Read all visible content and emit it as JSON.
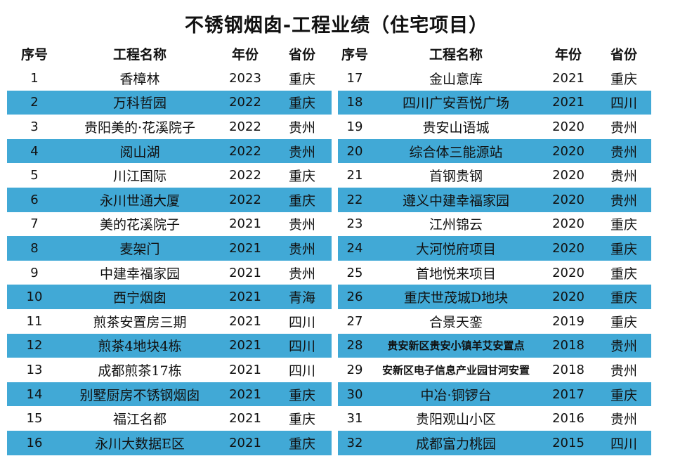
{
  "title": "不锈钢烟囱-工程业绩（住宅项目）",
  "headers": [
    "序号",
    "工程名称",
    "年份",
    "省份"
  ],
  "left_rows": [
    {
      "no": "1",
      "name": "香樟林",
      "year": "2023",
      "prov": "重庆"
    },
    {
      "no": "2",
      "name": "万科哲园",
      "year": "2022",
      "prov": "重庆"
    },
    {
      "no": "3",
      "name": "贵阳美的·花溪院子",
      "year": "2022",
      "prov": "贵州"
    },
    {
      "no": "4",
      "name": "阅山湖",
      "year": "2022",
      "prov": "贵州"
    },
    {
      "no": "5",
      "name": "川江国际",
      "year": "2022",
      "prov": "重庆"
    },
    {
      "no": "6",
      "name": "永川世通大厦",
      "year": "2022",
      "prov": "重庆"
    },
    {
      "no": "7",
      "name": "美的花溪院子",
      "year": "2021",
      "prov": "贵州"
    },
    {
      "no": "8",
      "name": "麦架门",
      "year": "2021",
      "prov": "贵州"
    },
    {
      "no": "9",
      "name": "中建幸福家园",
      "year": "2021",
      "prov": "贵州"
    },
    {
      "no": "10",
      "name": "西宁烟囱",
      "year": "2021",
      "prov": "青海"
    },
    {
      "no": "11",
      "name": "煎茶安置房三期",
      "year": "2021",
      "prov": "四川"
    },
    {
      "no": "12",
      "name": "煎茶4地块4栋",
      "year": "2021",
      "prov": "四川"
    },
    {
      "no": "13",
      "name": "成都煎茶17栋",
      "year": "2021",
      "prov": "四川"
    },
    {
      "no": "14",
      "name": "别墅厨房不锈钢烟囱",
      "year": "2021",
      "prov": "重庆"
    },
    {
      "no": "15",
      "name": "福江名都",
      "year": "2021",
      "prov": "重庆"
    },
    {
      "no": "16",
      "name": "永川大数据E区",
      "year": "2021",
      "prov": "重庆"
    }
  ],
  "right_rows": [
    {
      "no": "17",
      "name": "金山意库",
      "year": "2021",
      "prov": "重庆"
    },
    {
      "no": "18",
      "name": "四川广安吾悦广场",
      "year": "2021",
      "prov": "四川"
    },
    {
      "no": "19",
      "name": "贵安山语城",
      "year": "2020",
      "prov": "贵州"
    },
    {
      "no": "20",
      "name": "综合体三能源站",
      "year": "2020",
      "prov": "贵州"
    },
    {
      "no": "21",
      "name": "首钢贵钢",
      "year": "2020",
      "prov": "贵州"
    },
    {
      "no": "22",
      "name": "遵义中建幸福家园",
      "year": "2020",
      "prov": "贵州"
    },
    {
      "no": "23",
      "name": "江州锦云",
      "year": "2020",
      "prov": "重庆"
    },
    {
      "no": "24",
      "name": "大河悦府项目",
      "year": "2020",
      "prov": "重庆"
    },
    {
      "no": "25",
      "name": "首地悦来项目",
      "year": "2020",
      "prov": "重庆"
    },
    {
      "no": "26",
      "name": "重庆世茂城D地块",
      "year": "2020",
      "prov": "重庆"
    },
    {
      "no": "27",
      "name": "合景天銮",
      "year": "2019",
      "prov": "重庆"
    },
    {
      "no": "28",
      "name": "贵安新区贵安小镇羊艾安置点",
      "year": "2018",
      "prov": "贵州"
    },
    {
      "no": "29",
      "name": "安新区电子信息产业园甘河安置",
      "year": "2018",
      "prov": "贵州"
    },
    {
      "no": "30",
      "name": "中冶·铜锣台",
      "year": "2017",
      "prov": "重庆"
    },
    {
      "no": "31",
      "name": "贵阳观山小区",
      "year": "2016",
      "prov": "贵州"
    },
    {
      "no": "32",
      "name": "成都富力桃园",
      "year": "2015",
      "prov": "四川"
    }
  ]
}
